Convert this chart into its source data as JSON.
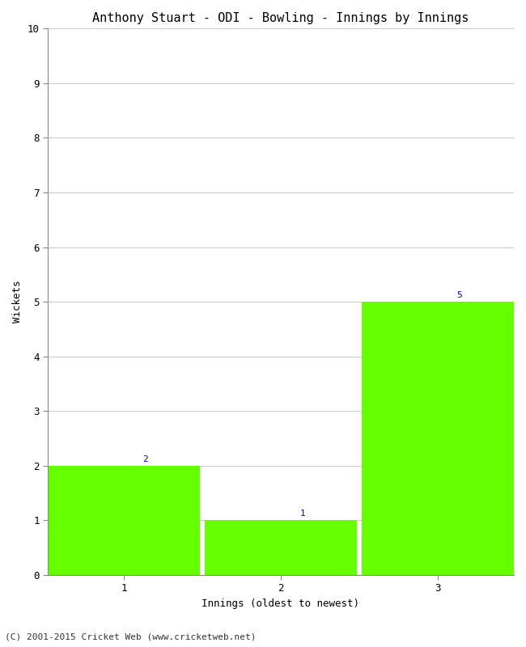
{
  "title": "Anthony Stuart - ODI - Bowling - Innings by Innings",
  "xlabel": "Innings (oldest to newest)",
  "ylabel": "Wickets",
  "innings": [
    1,
    2,
    3
  ],
  "wickets": [
    2,
    1,
    5
  ],
  "bar_color": "#66ff00",
  "annotation_color": "#0000cc",
  "ylim": [
    0,
    10
  ],
  "yticks": [
    0,
    1,
    2,
    3,
    4,
    5,
    6,
    7,
    8,
    9,
    10
  ],
  "xticks": [
    1,
    2,
    3
  ],
  "background_color": "#ffffff",
  "footer": "(C) 2001-2015 Cricket Web (www.cricketweb.net)",
  "title_fontsize": 11,
  "label_fontsize": 9,
  "annotation_fontsize": 8,
  "footer_fontsize": 8,
  "bar_width": 0.97
}
